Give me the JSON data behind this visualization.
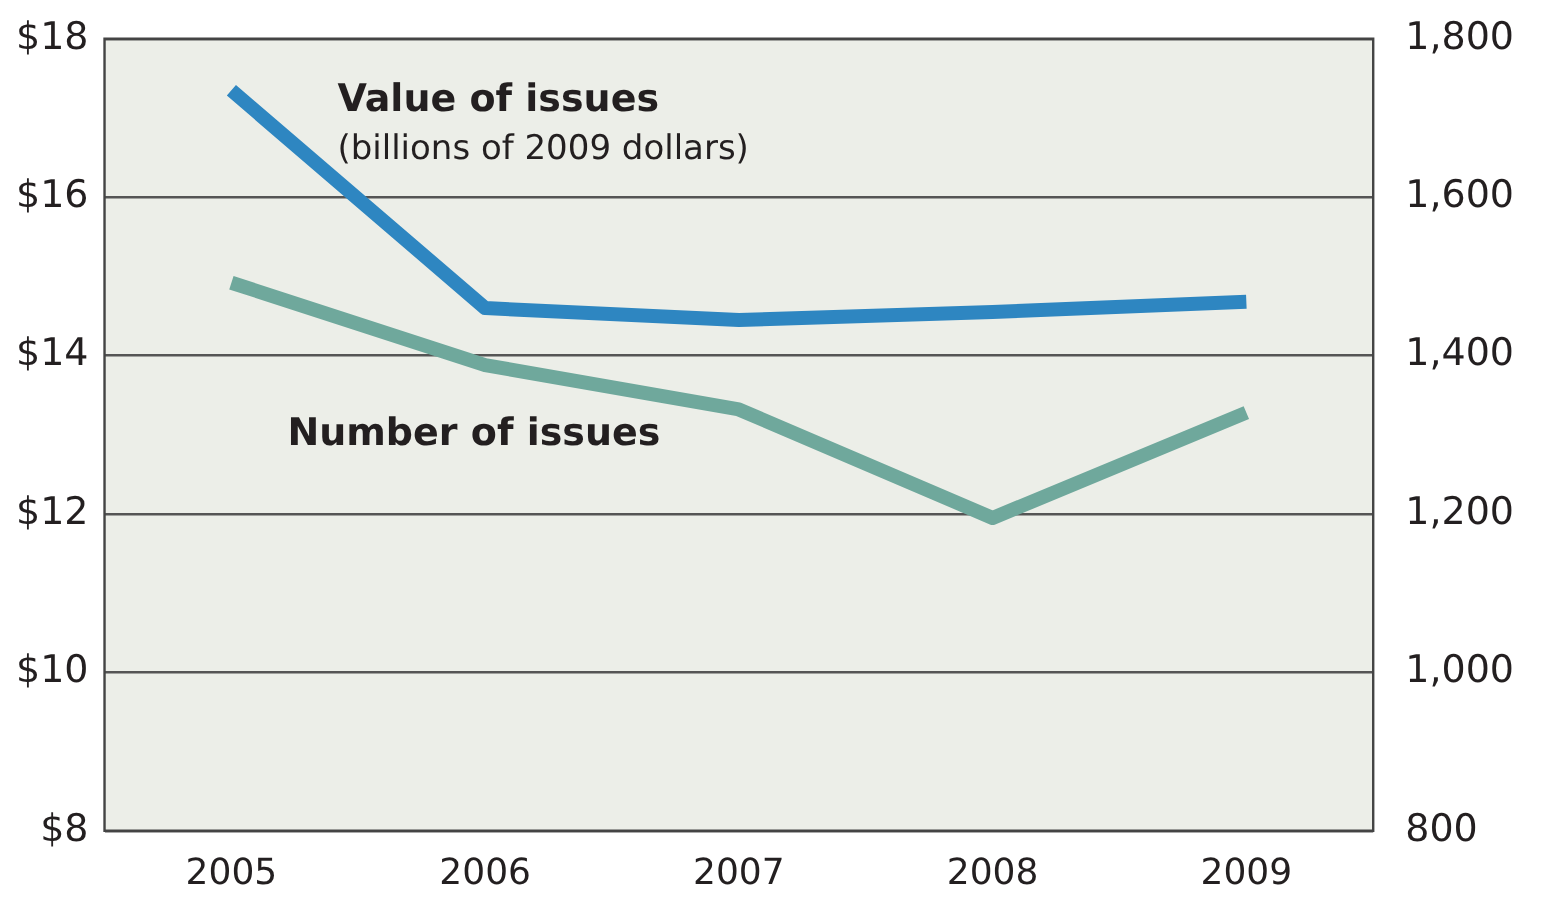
{
  "chart_data": {
    "type": "line",
    "categories": [
      "2005",
      "2006",
      "2007",
      "2008",
      "2009"
    ],
    "series": [
      {
        "name": "Value of issues",
        "color": "#2e86c1",
        "values": [
          17.35,
          14.6,
          14.45,
          14.55,
          14.68
        ]
      },
      {
        "name": "Number of issues",
        "color": "#6fa89c",
        "values": [
          1492,
          1388,
          1332,
          1195,
          1328
        ],
        "axis": "y2"
      }
    ],
    "ylim": [
      8,
      18
    ],
    "yticks": [
      {
        "value": 8,
        "label": "$8"
      },
      {
        "value": 10,
        "label": "$10"
      },
      {
        "value": 12,
        "label": "$12"
      },
      {
        "value": 14,
        "label": "$14"
      },
      {
        "value": 16,
        "label": "$16"
      },
      {
        "value": 18,
        "label": "$18"
      }
    ],
    "y2lim": [
      800,
      1800
    ],
    "y2ticks": [
      {
        "value": 800,
        "label": "800"
      },
      {
        "value": 1000,
        "label": "1,000"
      },
      {
        "value": 1200,
        "label": "1,200"
      },
      {
        "value": 1400,
        "label": "1,400"
      },
      {
        "value": 1600,
        "label": "1,600"
      },
      {
        "value": 1800,
        "label": "1,800"
      }
    ],
    "annotations": [
      "(billions of 2009 dollars)"
    ],
    "grid": "y",
    "legend": false,
    "marker": "none",
    "line_style": "solid"
  }
}
